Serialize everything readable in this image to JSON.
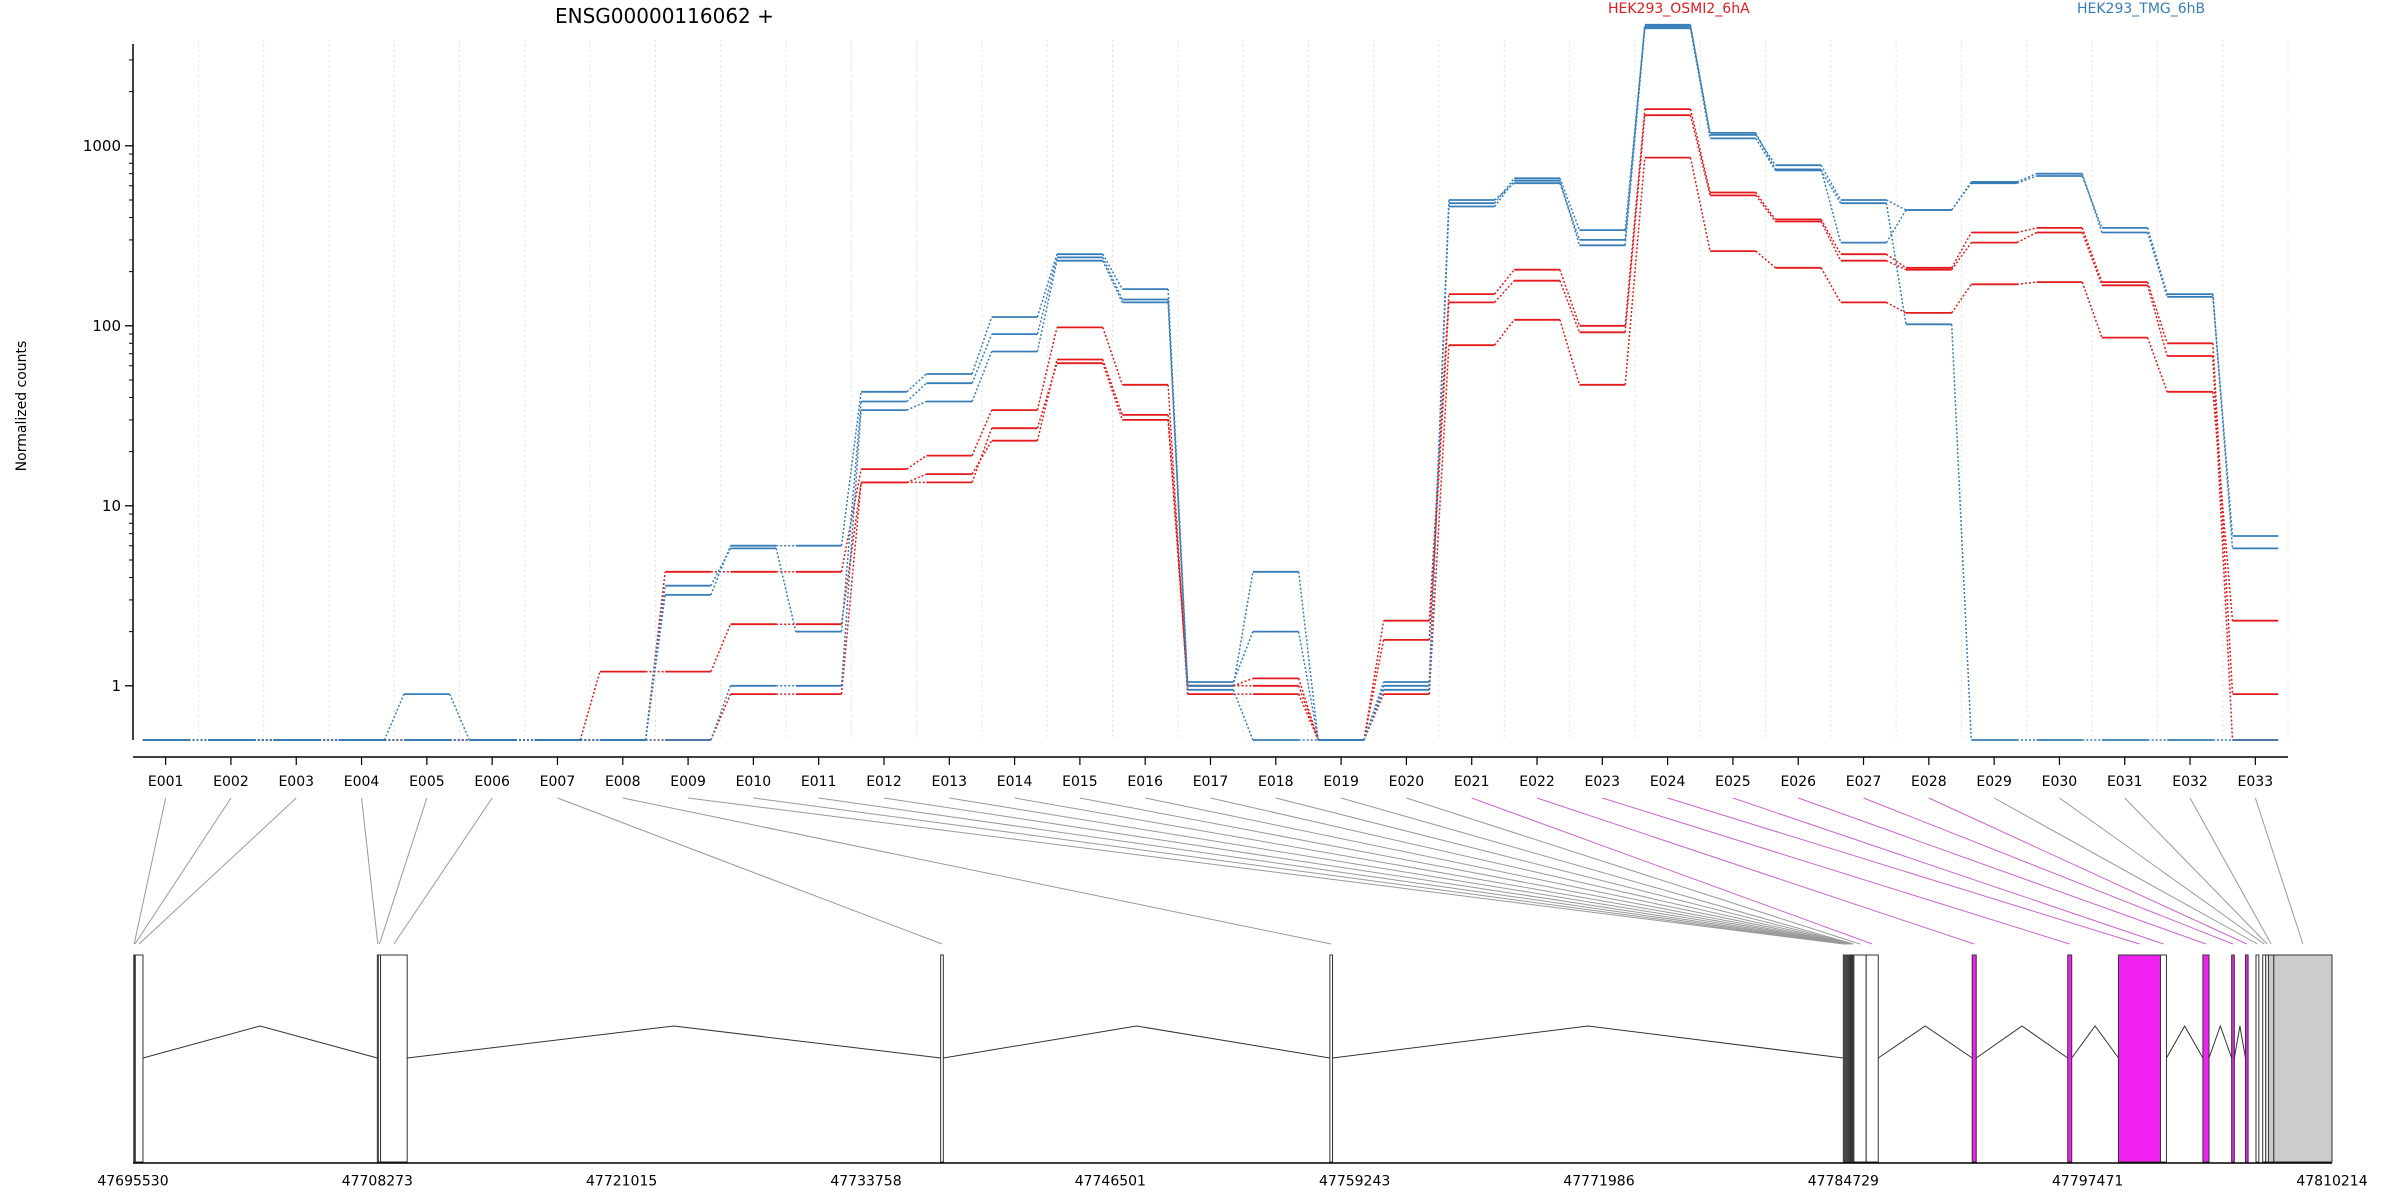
{
  "chart_data": {
    "type": "line",
    "title": "ENSG00000116062 +",
    "ylabel": "Normalized counts",
    "yscale": "log",
    "y_floor": 0.5,
    "yticks": [
      1,
      10,
      100,
      1000
    ],
    "ytick_labels": [
      "1",
      "10",
      "100",
      "1000"
    ],
    "grid": "vertical dotted",
    "legend_placement": "top",
    "categories": [
      "E001",
      "E002",
      "E003",
      "E004",
      "E005",
      "E006",
      "E007",
      "E008",
      "E009",
      "E010",
      "E011",
      "E012",
      "E013",
      "E014",
      "E015",
      "E016",
      "E017",
      "E018",
      "E019",
      "E020",
      "E021",
      "E022",
      "E023",
      "E024",
      "E025",
      "E026",
      "E027",
      "E028",
      "E029",
      "E030",
      "E031",
      "E032",
      "E033"
    ],
    "groups": [
      {
        "name": "HEK293_OSMI2_6hA",
        "color": "#e41a1c"
      },
      {
        "name": "HEK293_TMG_6hB",
        "color": "#377eb8"
      }
    ],
    "series": [
      {
        "group": "HEK293_OSMI2_6hA",
        "values": [
          0.5,
          0.5,
          0.5,
          0.5,
          0.5,
          0.5,
          0.5,
          1.2,
          1.2,
          2.2,
          2.2,
          13.5,
          15,
          23,
          65,
          32,
          1.0,
          1.1,
          0.5,
          2.3,
          150,
          205,
          100,
          1600,
          550,
          390,
          250,
          210,
          330,
          350,
          175,
          80,
          0.9
        ]
      },
      {
        "group": "HEK293_OSMI2_6hA",
        "values": [
          0.5,
          0.5,
          0.5,
          0.5,
          0.5,
          0.5,
          0.5,
          0.5,
          4.3,
          4.3,
          4.3,
          16,
          19,
          34,
          98,
          47,
          0.9,
          0.9,
          0.5,
          0.9,
          78,
          108,
          47,
          860,
          260,
          210,
          135,
          118,
          170,
          175,
          86,
          43,
          2.3
        ]
      },
      {
        "group": "HEK293_OSMI2_6hA",
        "values": [
          0.5,
          0.5,
          0.5,
          0.5,
          0.5,
          0.5,
          0.5,
          0.5,
          0.5,
          0.9,
          0.9,
          13.5,
          13.5,
          27,
          62,
          30,
          1.0,
          1.0,
          0.5,
          1.8,
          135,
          178,
          92,
          1480,
          530,
          380,
          230,
          205,
          290,
          330,
          168,
          68,
          0.5
        ]
      },
      {
        "group": "HEK293_TMG_6hB",
        "values": [
          0.5,
          0.5,
          0.5,
          0.5,
          0.9,
          0.5,
          0.5,
          0.5,
          0.5,
          1.0,
          1.0,
          34,
          38,
          72,
          230,
          135,
          1.0,
          4.3,
          0.5,
          1.0,
          480,
          660,
          340,
          4600,
          1180,
          740,
          290,
          440,
          620,
          680,
          350,
          150,
          5.8
        ]
      },
      {
        "group": "HEK293_TMG_6hB",
        "values": [
          0.5,
          0.5,
          0.5,
          0.5,
          0.5,
          0.5,
          0.5,
          0.5,
          3.2,
          6.0,
          6.0,
          43,
          54,
          112,
          250,
          160,
          1.05,
          2.0,
          0.5,
          1.05,
          500,
          620,
          300,
          4700,
          1150,
          780,
          500,
          440,
          630,
          700,
          330,
          145,
          6.8
        ]
      },
      {
        "group": "HEK293_TMG_6hB",
        "values": [
          0.5,
          0.5,
          0.5,
          0.5,
          0.5,
          0.5,
          0.5,
          0.5,
          3.6,
          5.8,
          2.0,
          38,
          48,
          90,
          240,
          140,
          0.95,
          0.5,
          0.5,
          0.95,
          460,
          640,
          280,
          4500,
          1100,
          730,
          480,
          102,
          0.5,
          0.5,
          0.5,
          0.5,
          0.5
        ]
      }
    ],
    "gene_model": {
      "coordinate_labels": [
        "47695530",
        "47708273",
        "47721015",
        "47733758",
        "47746501",
        "47759243",
        "47771986",
        "47784729",
        "47797471",
        "47810214"
      ],
      "features": [
        {
          "exon": "E001",
          "start": 47695570,
          "end": 47695610,
          "fill": "#ffffff"
        },
        {
          "exon": "E002",
          "start": 47695610,
          "end": 47695650,
          "fill": "#ffffff"
        },
        {
          "exon": "E003",
          "start": 47695650,
          "end": 47696050,
          "fill": "#ffffff"
        },
        {
          "exon": "E004",
          "start": 47708273,
          "end": 47708325,
          "fill": "#ffffff"
        },
        {
          "exon": "E005",
          "start": 47708325,
          "end": 47708440,
          "fill": "#ffffff"
        },
        {
          "exon": "E006",
          "start": 47708440,
          "end": 47709830,
          "fill": "#ffffff"
        },
        {
          "exon": "E007",
          "start": 47737650,
          "end": 47737790,
          "fill": "#ffffff"
        },
        {
          "exon": "E008",
          "start": 47757950,
          "end": 47758090,
          "fill": "#ffffff"
        },
        {
          "exon": "E009",
          "start": 47784729,
          "end": 47784779,
          "fill": "#ffffff"
        },
        {
          "exon": "E010",
          "start": 47784779,
          "end": 47784829,
          "fill": "#ffffff"
        },
        {
          "exon": "E011",
          "start": 47784829,
          "end": 47784879,
          "fill": "#ffffff"
        },
        {
          "exon": "E012",
          "start": 47784879,
          "end": 47784929,
          "fill": "#ffffff"
        },
        {
          "exon": "E013",
          "start": 47784929,
          "end": 47784979,
          "fill": "#ffffff"
        },
        {
          "exon": "E014",
          "start": 47784979,
          "end": 47785029,
          "fill": "#ffffff"
        },
        {
          "exon": "E015",
          "start": 47785029,
          "end": 47785079,
          "fill": "#ffffff"
        },
        {
          "exon": "E016",
          "start": 47785079,
          "end": 47785129,
          "fill": "#ffffff"
        },
        {
          "exon": "E017",
          "start": 47785129,
          "end": 47785179,
          "fill": "#ffffff"
        },
        {
          "exon": "E018",
          "start": 47785179,
          "end": 47785229,
          "fill": "#ffffff"
        },
        {
          "exon": "E019",
          "start": 47785229,
          "end": 47785279,
          "fill": "#ffffff"
        },
        {
          "exon": "E020",
          "start": 47785280,
          "end": 47785920,
          "fill": "#ffffff"
        },
        {
          "exon": "E021",
          "start": 47785920,
          "end": 47786550,
          "fill": "#ffffff"
        },
        {
          "exon": "E022",
          "start": 47791450,
          "end": 47791660,
          "fill": "#f020f0"
        },
        {
          "exon": "E023",
          "start": 47796430,
          "end": 47796640,
          "fill": "#f020f0"
        },
        {
          "exon": "E024",
          "start": 47799080,
          "end": 47801270,
          "fill": "#f020f0"
        },
        {
          "exon": "E025",
          "start": 47801270,
          "end": 47801580,
          "fill": "#ffffff"
        },
        {
          "exon": "E026",
          "start": 47803480,
          "end": 47803800,
          "fill": "#f020f0"
        },
        {
          "exon": "E027",
          "start": 47804980,
          "end": 47805120,
          "fill": "#f020f0"
        },
        {
          "exon": "E028",
          "start": 47805700,
          "end": 47805840,
          "fill": "#f020f0"
        },
        {
          "exon": "E029",
          "start": 47806250,
          "end": 47806400,
          "fill": "#ffffff"
        },
        {
          "exon": "E030",
          "start": 47806600,
          "end": 47806760,
          "fill": "#ffffff"
        },
        {
          "exon": "E031",
          "start": 47806760,
          "end": 47806900,
          "fill": "#ffffff"
        },
        {
          "exon": "E032",
          "start": 47806900,
          "end": 47807180,
          "fill": "#cccccc"
        },
        {
          "exon": "E033",
          "start": 47807180,
          "end": 47810214,
          "fill": "#cccccc"
        }
      ],
      "connector_colors": {
        "default": "#999999",
        "highlight": "#cc66cc"
      },
      "highlighted_exons": [
        "E021",
        "E022",
        "E023",
        "E024",
        "E025",
        "E026",
        "E027",
        "E028"
      ]
    }
  }
}
